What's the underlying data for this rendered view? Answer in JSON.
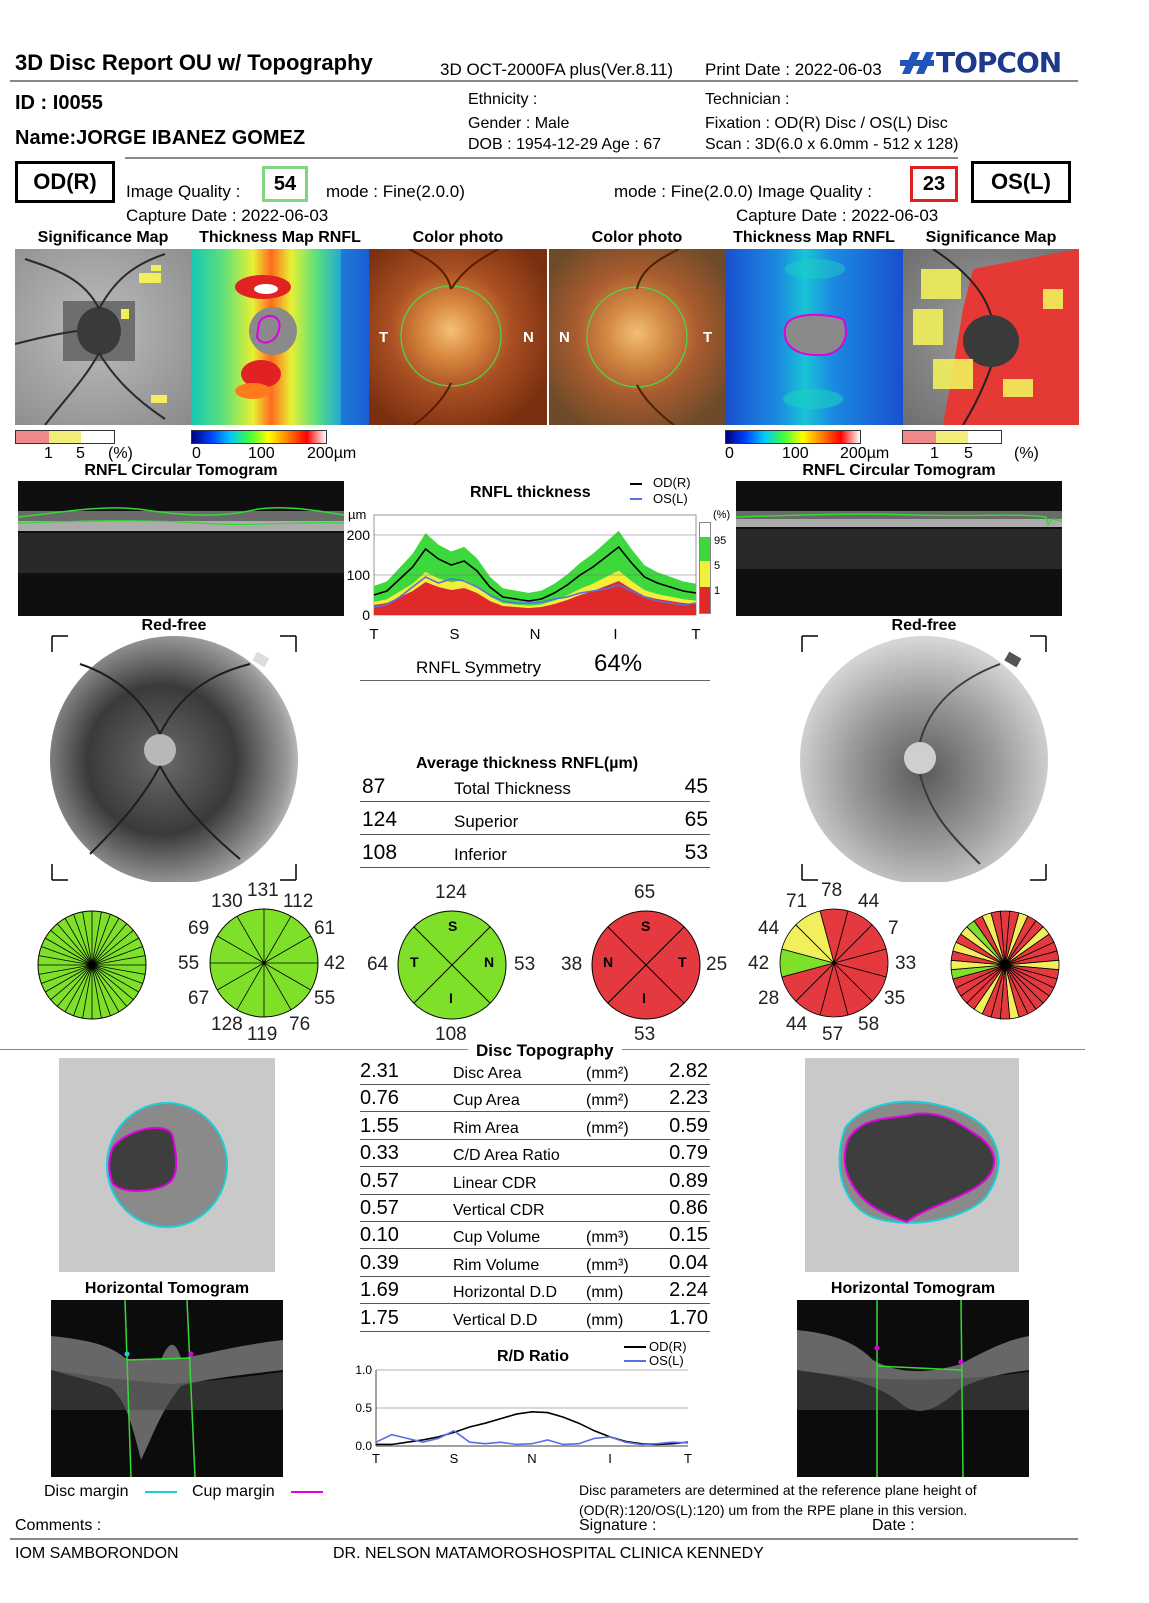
{
  "header": {
    "title": "3D Disc Report OU w/ Topography",
    "device": "3D OCT-2000FA plus(Ver.8.11)",
    "print_date": "Print Date : 2022-06-03",
    "brand": "TOPCON"
  },
  "patient": {
    "id": "ID : I0055",
    "name": "Name:JORGE IBANEZ GOMEZ",
    "ethnicity": "Ethnicity :",
    "gender": "Gender : Male",
    "dob_age": "DOB : 1954-12-29    Age : 67",
    "technician": "Technician :",
    "fixation": "Fixation : OD(R) Disc / OS(L) Disc",
    "scan": "Scan : 3D(6.0 x 6.0mm - 512 x 128)"
  },
  "od": {
    "label": "OD(R)",
    "iq_label": "Image Quality :",
    "iq": "54",
    "iq_color": "#7fd67f",
    "mode": "mode : Fine(2.0.0)",
    "capture": "Capture Date : 2022-06-03"
  },
  "os": {
    "label": "OS(L)",
    "iq_label": "mode : Fine(2.0.0) Image Quality :",
    "iq": "23",
    "iq_color": "#e02020",
    "capture": "Capture Date : 2022-06-03"
  },
  "panels": {
    "sig_map": "Significance Map",
    "thick_map": "Thickness Map RNFL",
    "color_photo": "Color photo",
    "T": "T",
    "N": "N"
  },
  "legends": {
    "sig_nums": [
      "1",
      "5",
      "(%)"
    ],
    "thick_nums": [
      "0",
      "100",
      "200µm"
    ]
  },
  "rnfl": {
    "circ_title": "RNFL Circular Tomogram",
    "chart_title": "RNFL thickness",
    "legend_od": "OD(R)",
    "legend_os": "OS(L)",
    "unit": "µm",
    "pct": "(%)",
    "pct_ticks": [
      "95",
      "5",
      "1"
    ],
    "symmetry_label": "RNFL Symmetry",
    "symmetry_value": "64%"
  },
  "chart_data": [
    {
      "type": "line",
      "title": "RNFL thickness",
      "ylabel": "µm",
      "x_ticks": [
        "T",
        "S",
        "N",
        "I",
        "T"
      ],
      "y_ticks": [
        "0",
        "100",
        "200"
      ],
      "ylim": [
        0,
        250
      ],
      "x": [
        0,
        0.04,
        0.08,
        0.12,
        0.16,
        0.2,
        0.24,
        0.28,
        0.32,
        0.36,
        0.4,
        0.44,
        0.48,
        0.52,
        0.56,
        0.6,
        0.64,
        0.68,
        0.72,
        0.76,
        0.8,
        0.84,
        0.88,
        0.92,
        0.96,
        1.0
      ],
      "series": [
        {
          "name": "OD(R)",
          "color": "#000000",
          "values": [
            50,
            60,
            90,
            120,
            165,
            140,
            125,
            135,
            110,
            70,
            45,
            40,
            35,
            40,
            55,
            75,
            100,
            120,
            145,
            170,
            130,
            95,
            80,
            70,
            60,
            55
          ]
        },
        {
          "name": "OS(L)",
          "color": "#5a6ee6",
          "values": [
            20,
            25,
            45,
            70,
            95,
            80,
            90,
            85,
            70,
            50,
            35,
            30,
            30,
            32,
            40,
            45,
            55,
            60,
            65,
            75,
            60,
            45,
            35,
            30,
            25,
            30
          ]
        }
      ]
    },
    {
      "type": "line",
      "title": "R/D Ratio",
      "x_ticks": [
        "T",
        "S",
        "N",
        "I",
        "T"
      ],
      "y_ticks": [
        "0.0",
        "0.5",
        "1.0"
      ],
      "ylim": [
        0,
        1
      ],
      "x": [
        0,
        0.05,
        0.1,
        0.15,
        0.2,
        0.25,
        0.3,
        0.35,
        0.4,
        0.45,
        0.5,
        0.55,
        0.6,
        0.65,
        0.7,
        0.75,
        0.8,
        0.85,
        0.9,
        0.95,
        1.0
      ],
      "series": [
        {
          "name": "OD(R)",
          "color": "#000000",
          "values": [
            0.02,
            0.02,
            0.05,
            0.08,
            0.12,
            0.18,
            0.25,
            0.3,
            0.36,
            0.42,
            0.45,
            0.44,
            0.38,
            0.3,
            0.2,
            0.12,
            0.06,
            0.03,
            0.02,
            0.03,
            0.05
          ]
        },
        {
          "name": "OS(L)",
          "color": "#5a6ee6",
          "values": [
            0.05,
            0.15,
            0.1,
            0.05,
            0.1,
            0.2,
            0.05,
            0.03,
            0.05,
            0.02,
            0.03,
            0.08,
            0.02,
            0.03,
            0.1,
            0.12,
            0.05,
            0.02,
            0.03,
            0.05,
            0.04
          ]
        }
      ]
    }
  ],
  "redfree": "Red-free",
  "avg": {
    "title": "Average thickness RNFL(µm)",
    "rows": [
      {
        "od": "87",
        "label": "Total Thickness",
        "os": "45"
      },
      {
        "od": "124",
        "label": "Superior",
        "os": "65"
      },
      {
        "od": "108",
        "label": "Inferior",
        "os": "53"
      }
    ]
  },
  "clock_od": {
    "n12": "131",
    "n1": "112",
    "n2": "61",
    "n3": "42",
    "n4": "55",
    "n5": "76",
    "n6": "119",
    "n7": "128",
    "n8": "67",
    "n9": "55",
    "n10": "69",
    "n11": "130"
  },
  "clock_os": {
    "n12": "78",
    "n1": "44",
    "n2": "7",
    "n3": "33",
    "n4": "35",
    "n5": "58",
    "n6": "57",
    "n7": "44",
    "n8": "28",
    "n9": "42",
    "n10": "44",
    "n11": "71"
  },
  "quad_od": {
    "top": "124",
    "left": "64",
    "right": "53",
    "bottom": "108",
    "S": "S",
    "T": "T",
    "N": "N",
    "I": "I"
  },
  "quad_os": {
    "top": "65",
    "left": "38",
    "right": "25",
    "bottom": "53",
    "S": "S",
    "N": "N",
    "T": "T",
    "I": "I"
  },
  "topo": {
    "title": "Disc Topography",
    "rows": [
      {
        "od": "2.31",
        "label": "Disc Area",
        "unit": "(mm²)",
        "os": "2.82"
      },
      {
        "od": "0.76",
        "label": "Cup Area",
        "unit": "(mm²)",
        "os": "2.23"
      },
      {
        "od": "1.55",
        "label": "Rim Area",
        "unit": "(mm²)",
        "os": "0.59"
      },
      {
        "od": "0.33",
        "label": "C/D Area Ratio",
        "unit": "",
        "os": "0.79"
      },
      {
        "od": "0.57",
        "label": "Linear CDR",
        "unit": "",
        "os": "0.89"
      },
      {
        "od": "0.57",
        "label": "Vertical CDR",
        "unit": "",
        "os": "0.86"
      },
      {
        "od": "0.10",
        "label": "Cup Volume",
        "unit": "(mm³)",
        "os": "0.15"
      },
      {
        "od": "0.39",
        "label": "Rim Volume",
        "unit": "(mm³)",
        "os": "0.04"
      },
      {
        "od": "1.69",
        "label": "Horizontal D.D",
        "unit": "(mm)",
        "os": "2.24"
      },
      {
        "od": "1.75",
        "label": "Vertical D.D",
        "unit": "(mm)",
        "os": "1.70"
      }
    ]
  },
  "rd": {
    "title": "R/D Ratio",
    "legend_od": "OD(R)",
    "legend_os": "OS(L)"
  },
  "horiz_tomo": "Horizontal Tomogram",
  "legend_bottom": {
    "disc": "Disc margin",
    "cup": "Cup margin"
  },
  "footer": {
    "note1": "Disc parameters are determined at the reference plane height of",
    "note2": "(OD(R):120/OS(L):120) um from the RPE plane in this version.",
    "comments": "Comments :",
    "signature": "Signature :",
    "date": "Date :",
    "site": "IOM SAMBORONDON",
    "doctor": "DR. NELSON MATAMOROS",
    "hospital": "HOSPITAL CLINICA KENNEDY"
  }
}
